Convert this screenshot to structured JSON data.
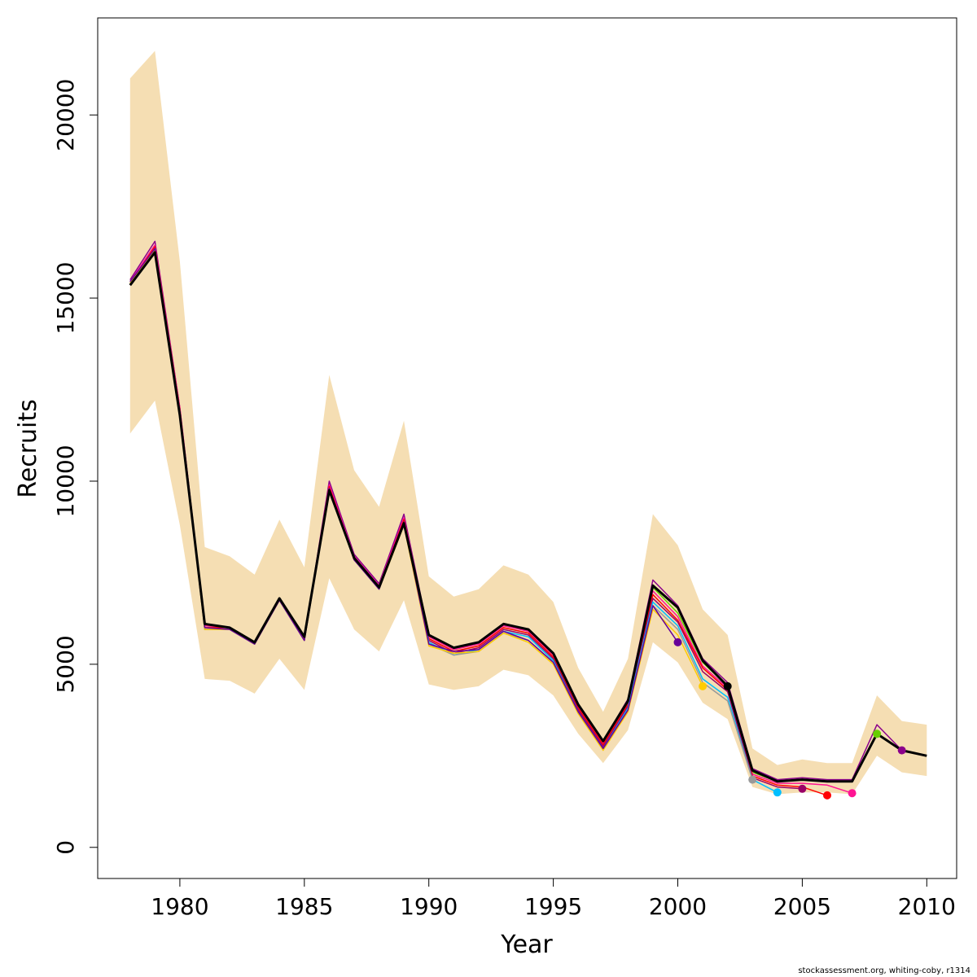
{
  "chart_data": {
    "type": "line",
    "xlabel": "Year",
    "ylabel": "Recruits",
    "xlim": [
      1976.7,
      2011.2
    ],
    "ylim": [
      -850,
      22650
    ],
    "x_ticks": [
      1980,
      1985,
      1990,
      1995,
      2000,
      2005,
      2010
    ],
    "y_ticks": [
      0,
      5000,
      10000,
      15000,
      20000
    ],
    "grid": false,
    "legend": "none",
    "band_color": "#F5DEB3",
    "band": {
      "x": [
        1978,
        1979,
        1980,
        1981,
        1982,
        1983,
        1984,
        1985,
        1986,
        1987,
        1988,
        1989,
        1990,
        1991,
        1992,
        1993,
        1994,
        1995,
        1996,
        1997,
        1998,
        1999,
        2000,
        2001,
        2002,
        2003,
        2004,
        2005,
        2006,
        2007,
        2008,
        2009,
        2010
      ],
      "lower": [
        11300,
        12200,
        8800,
        4600,
        4550,
        4200,
        5150,
        4300,
        7350,
        5950,
        5350,
        6750,
        4450,
        4300,
        4400,
        4850,
        4700,
        4150,
        3100,
        2300,
        3200,
        5600,
        5050,
        3950,
        3500,
        1650,
        1450,
        1500,
        1500,
        1450,
        2500,
        2050,
        1950
      ],
      "upper": [
        21000,
        21750,
        16000,
        8200,
        7950,
        7450,
        8950,
        7650,
        12900,
        10300,
        9300,
        11650,
        7400,
        6850,
        7050,
        7700,
        7450,
        6700,
        4900,
        3700,
        5150,
        9100,
        8250,
        6500,
        5800,
        2700,
        2250,
        2400,
        2300,
        2300,
        4150,
        3450,
        3350
      ]
    },
    "series": [
      {
        "color": "#000000",
        "width": 3,
        "x": [
          1978,
          1979,
          1980,
          1981,
          1982,
          1983,
          1984,
          1985,
          1986,
          1987,
          1988,
          1989,
          1990,
          1991,
          1992,
          1993,
          1994,
          1995,
          1996,
          1997,
          1998,
          1999,
          2000,
          2001,
          2002,
          2003,
          2004,
          2005,
          2006,
          2007,
          2008,
          2009,
          2010
        ],
        "y": [
          15350,
          16250,
          11800,
          6100,
          6000,
          5600,
          6800,
          5750,
          9750,
          7900,
          7100,
          8850,
          5800,
          5450,
          5600,
          6100,
          5950,
          5300,
          3900,
          2900,
          4000,
          7150,
          6550,
          5100,
          4400,
          2100,
          1800,
          1850,
          1800,
          1800,
          3100,
          2650,
          2500
        ],
        "end_year": 2002
      },
      {
        "color": "#8B008B",
        "width": 1.5,
        "x": [
          1978,
          1979,
          1980,
          1981,
          1982,
          1983,
          1984,
          1985,
          1986,
          1987,
          1988,
          1989,
          1990,
          1991,
          1992,
          1993,
          1994,
          1995,
          1996,
          1997,
          1998,
          1999,
          2000,
          2001,
          2002,
          2003,
          2004,
          2005,
          2006,
          2007,
          2008,
          2009
        ],
        "y": [
          15500,
          16550,
          12000,
          6100,
          6000,
          5600,
          6800,
          5700,
          10000,
          8000,
          7200,
          9100,
          5800,
          5450,
          5600,
          6100,
          5950,
          5300,
          3900,
          2900,
          4050,
          7300,
          6600,
          5150,
          4500,
          2150,
          1850,
          1900,
          1850,
          1850,
          3350,
          2650
        ],
        "end_year": 2009
      },
      {
        "color": "#66CD00",
        "width": 1.5,
        "x": [
          1978,
          1979,
          1980,
          1981,
          1982,
          1983,
          1984,
          1985,
          1986,
          1987,
          1988,
          1989,
          1990,
          1991,
          1992,
          1993,
          1994,
          1995,
          1996,
          1997,
          1998,
          1999,
          2000,
          2001,
          2002,
          2003,
          2004,
          2005,
          2006,
          2007,
          2008
        ],
        "y": [
          15450,
          16400,
          11900,
          6050,
          6000,
          5600,
          6780,
          5700,
          9850,
          7900,
          7150,
          8950,
          5750,
          5450,
          5600,
          6100,
          5950,
          5300,
          3900,
          2900,
          4000,
          7100,
          6400,
          5050,
          4400,
          2050,
          1800,
          1850,
          1800,
          1800,
          3100
        ],
        "end_year": 2008
      },
      {
        "color": "#FF1493",
        "width": 1.5,
        "x": [
          1978,
          1979,
          1980,
          1981,
          1982,
          1983,
          1984,
          1985,
          1986,
          1987,
          1988,
          1989,
          1990,
          1991,
          1992,
          1993,
          1994,
          1995,
          1996,
          1997,
          1998,
          1999,
          2000,
          2001,
          2002,
          2003,
          2004,
          2005,
          2006,
          2007
        ],
        "y": [
          15450,
          16450,
          12000,
          6050,
          6000,
          5600,
          6800,
          5700,
          9900,
          7950,
          7150,
          9000,
          5750,
          5400,
          5550,
          6050,
          5900,
          5250,
          3850,
          2850,
          3950,
          7000,
          6300,
          4950,
          4350,
          2000,
          1750,
          1750,
          1700,
          1480
        ],
        "end_year": 2007
      },
      {
        "color": "#FF0000",
        "width": 1.5,
        "x": [
          1978,
          1979,
          1980,
          1981,
          1982,
          1983,
          1984,
          1985,
          1986,
          1987,
          1988,
          1989,
          1990,
          1991,
          1992,
          1993,
          1994,
          1995,
          1996,
          1997,
          1998,
          1999,
          2000,
          2001,
          2002,
          2003,
          2004,
          2005,
          2006
        ],
        "y": [
          15400,
          16400,
          11950,
          6000,
          6000,
          5600,
          6800,
          5700,
          9850,
          7900,
          7100,
          8950,
          5700,
          5350,
          5500,
          6000,
          5850,
          5200,
          3800,
          2800,
          3900,
          6900,
          6200,
          4900,
          4300,
          1950,
          1700,
          1650,
          1420
        ],
        "end_year": 2006
      },
      {
        "color": "#990066",
        "width": 1.5,
        "x": [
          1978,
          1979,
          1980,
          1981,
          1982,
          1983,
          1984,
          1985,
          1986,
          1987,
          1988,
          1989,
          1990,
          1991,
          1992,
          1993,
          1994,
          1995,
          1996,
          1997,
          1998,
          1999,
          2000,
          2001,
          2002,
          2003,
          2004,
          2005
        ],
        "y": [
          15400,
          16350,
          11900,
          5950,
          5950,
          5550,
          6780,
          5650,
          9800,
          7850,
          7100,
          8900,
          5650,
          5300,
          5450,
          5950,
          5800,
          5150,
          3750,
          2750,
          3850,
          6800,
          6150,
          4800,
          4250,
          1900,
          1650,
          1600
        ],
        "end_year": 2005
      },
      {
        "color": "#00BFFF",
        "width": 1.5,
        "x": [
          1978,
          1979,
          1980,
          1981,
          1982,
          1983,
          1984,
          1985,
          1986,
          1987,
          1988,
          1989,
          1990,
          1991,
          1992,
          1993,
          1994,
          1995,
          1996,
          1997,
          1998,
          1999,
          2000,
          2001,
          2002,
          2003,
          2004
        ],
        "y": [
          15400,
          16350,
          11900,
          5950,
          5950,
          5550,
          6750,
          5650,
          9750,
          7850,
          7050,
          8850,
          5600,
          5250,
          5400,
          5900,
          5750,
          5100,
          3700,
          2700,
          3800,
          6700,
          6050,
          4600,
          4100,
          1850,
          1500
        ],
        "end_year": 2004
      },
      {
        "color": "#999999",
        "width": 1.5,
        "x": [
          1978,
          1979,
          1980,
          1981,
          1982,
          1983,
          1984,
          1985,
          1986,
          1987,
          1988,
          1989,
          1990,
          1991,
          1992,
          1993,
          1994,
          1995,
          1996,
          1997,
          1998,
          1999,
          2000,
          2001,
          2002,
          2003
        ],
        "y": [
          15400,
          16300,
          11850,
          5950,
          5950,
          5550,
          6750,
          5650,
          9750,
          7850,
          7050,
          8800,
          5550,
          5250,
          5350,
          5850,
          5650,
          5050,
          3700,
          2700,
          3750,
          6600,
          5950,
          4500,
          4000,
          1850
        ],
        "end_year": 2003
      },
      {
        "color": "#FFCC00",
        "width": 1.5,
        "x": [
          1978,
          1979,
          1980,
          1981,
          1982,
          1983,
          1984,
          1985,
          1986,
          1987,
          1988,
          1989,
          1990,
          1991,
          1992,
          1993,
          1994,
          1995,
          1996,
          1997,
          1998,
          1999,
          2000,
          2001
        ],
        "y": [
          15400,
          16300,
          11850,
          5950,
          5950,
          5550,
          6750,
          5650,
          9750,
          7850,
          7050,
          8800,
          5500,
          5300,
          5350,
          5850,
          5600,
          5000,
          3650,
          2650,
          3700,
          6500,
          5800,
          4400
        ],
        "end_year": 2001
      },
      {
        "color": "#660099",
        "width": 1.5,
        "x": [
          1978,
          1979,
          1980,
          1981,
          1982,
          1983,
          1984,
          1985,
          1986,
          1987,
          1988,
          1989,
          1990,
          1991,
          1992,
          1993,
          1994,
          1995,
          1996,
          1997,
          1998,
          1999,
          2000
        ],
        "y": [
          15450,
          16350,
          11900,
          6000,
          5950,
          5550,
          6750,
          5650,
          9800,
          7850,
          7050,
          8850,
          5550,
          5350,
          5400,
          5900,
          5650,
          5050,
          3700,
          2700,
          3750,
          6600,
          5600
        ],
        "end_year": 2000
      }
    ],
    "points": [
      {
        "x": 2000,
        "y": 5600,
        "color": "#660099"
      },
      {
        "x": 2001,
        "y": 4400,
        "color": "#FFCC00"
      },
      {
        "x": 2002,
        "y": 4400,
        "color": "#000000"
      },
      {
        "x": 2003,
        "y": 1850,
        "color": "#999999"
      },
      {
        "x": 2004,
        "y": 1500,
        "color": "#00BFFF"
      },
      {
        "x": 2005,
        "y": 1600,
        "color": "#990066"
      },
      {
        "x": 2006,
        "y": 1420,
        "color": "#FF0000"
      },
      {
        "x": 2007,
        "y": 1480,
        "color": "#FF1493"
      },
      {
        "x": 2008,
        "y": 3100,
        "color": "#66CD00"
      },
      {
        "x": 2009,
        "y": 2650,
        "color": "#8B008B"
      }
    ]
  },
  "footer": {
    "text": "stockassessment.org, whiting-coby, r1314"
  }
}
